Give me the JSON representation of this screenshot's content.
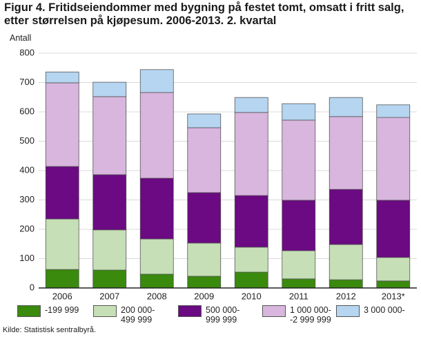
{
  "chart_data": {
    "type": "stacked-bar",
    "title": "Figur 4. Fritidseiendommer med bygning på festet tomt, omsatt i fritt salg, etter størrelsen på kjøpesum. 2006-2013. 2. kvartal",
    "y_label": "Antall",
    "source": "Kilde: Statistisk sentralbyrå.",
    "categories": [
      "2006",
      "2007",
      "2008",
      "2009",
      "2010",
      "2011",
      "2012",
      "2013*"
    ],
    "series": [
      {
        "name": "-199 999",
        "color": "#3a8a0e",
        "values": [
          63,
          61,
          47,
          40,
          54,
          31,
          28,
          24
        ]
      },
      {
        "name": "200 000-\n499 999",
        "color": "#c6dfb6",
        "values": [
          172,
          137,
          120,
          113,
          85,
          96,
          120,
          80
        ]
      },
      {
        "name": "500 000-\n999 999",
        "color": "#6b0a82",
        "values": [
          179,
          188,
          207,
          172,
          176,
          172,
          188,
          195
        ]
      },
      {
        "name": "1 000 000-\n-2 999 999",
        "color": "#d8b6de",
        "values": [
          285,
          266,
          292,
          221,
          283,
          273,
          248,
          282
        ]
      },
      {
        "name": "3 000 000-",
        "color": "#b5d5f1",
        "values": [
          37,
          49,
          78,
          47,
          51,
          56,
          65,
          43
        ]
      }
    ],
    "ylim": [
      0,
      800
    ],
    "yticks": [
      0,
      100,
      200,
      300,
      400,
      500,
      600,
      700,
      800
    ],
    "grid": true
  }
}
